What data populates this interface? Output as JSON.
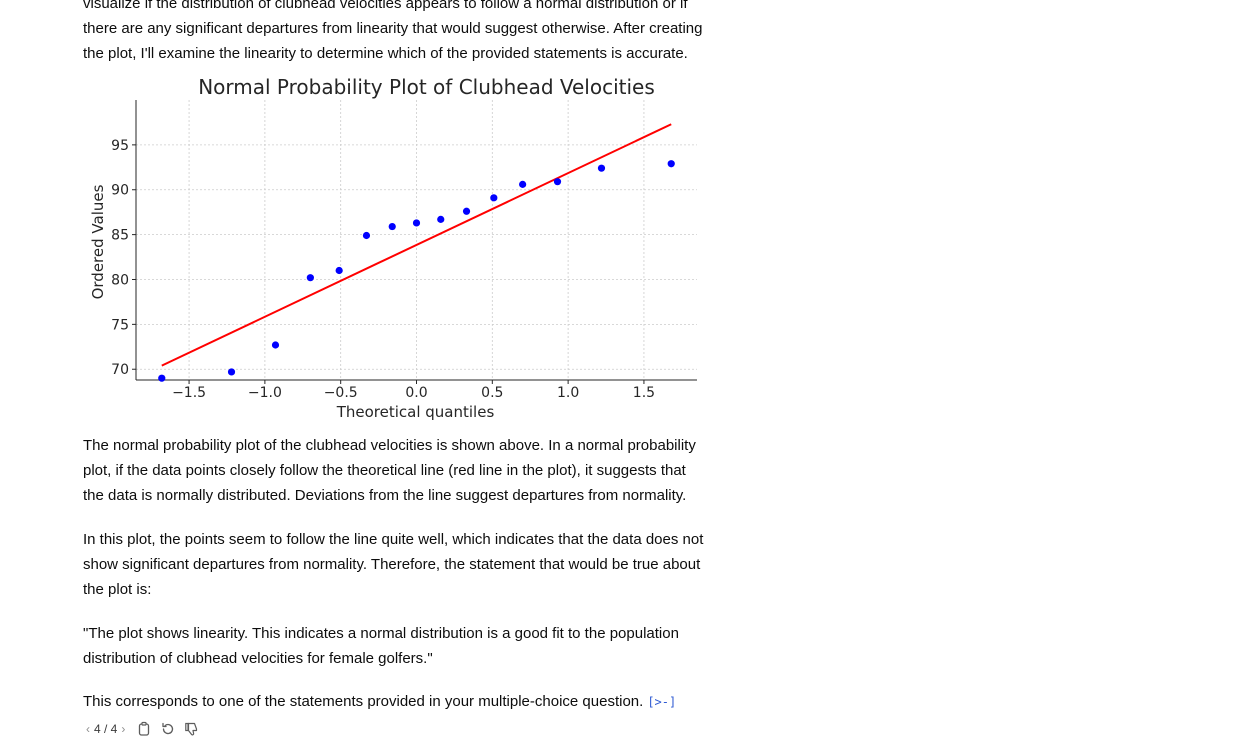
{
  "paragraphs": {
    "intro": "visualize if the distribution of clubhead velocities appears to follow a normal distribution or if there are any significant departures from linearity that would suggest otherwise. After creating the plot, I'll examine the linearity to determine which of the provided statements is accurate.",
    "explain": "The normal probability plot of the clubhead velocities is shown above. In a normal probability plot, if the data points closely follow the theoretical line (red line in the plot), it suggests that the data is normally distributed. Deviations from the line suggest departures from normality.",
    "conclusion": "In this plot, the points seem to follow the line quite well, which indicates that the data does not show significant departures from normality. Therefore, the statement that would be true about the plot is:",
    "quote": "\"The plot shows linearity. This indicates a normal distribution is a good fit to the population distribution of clubhead velocities for female golfers.\"",
    "final": "This corresponds to one of the statements provided in your multiple-choice question."
  },
  "code_link_icon": "[>-]",
  "footer": {
    "prev": "‹",
    "counter": "4 / 4",
    "next": "›",
    "icons": [
      "copy-icon",
      "regenerate-icon",
      "thumbs-down-icon"
    ]
  },
  "chart_data": {
    "type": "scatter",
    "title": "Normal Probability Plot of Clubhead Velocities",
    "xlabel": "Theoretical quantiles",
    "ylabel": "Ordered Values",
    "xlim": [
      -1.85,
      1.85
    ],
    "ylim": [
      68.8,
      100.0
    ],
    "xticks": [
      -1.5,
      -1.0,
      -0.5,
      0.0,
      0.5,
      1.0,
      1.5
    ],
    "xtick_labels": [
      "−1.5",
      "−1.0",
      "−0.5",
      "0.0",
      "0.5",
      "1.0",
      "1.5"
    ],
    "yticks": [
      70,
      75,
      80,
      85,
      90,
      95
    ],
    "ytick_labels": [
      "70",
      "75",
      "80",
      "85",
      "90",
      "95"
    ],
    "grid": true,
    "series": [
      {
        "kind": "points",
        "color": "#0000ff",
        "x": [
          -1.68,
          -1.22,
          -0.93,
          -0.7,
          -0.51,
          -0.33,
          -0.16,
          0.0,
          0.16,
          0.33,
          0.51,
          0.7,
          0.93,
          1.22,
          1.68
        ],
        "y": [
          69.0,
          69.7,
          72.7,
          80.2,
          81.0,
          84.9,
          85.9,
          86.3,
          86.7,
          87.6,
          89.1,
          90.6,
          90.9,
          92.4,
          92.9
        ]
      },
      {
        "kind": "line",
        "color": "#ff0000",
        "x": [
          -1.68,
          1.68
        ],
        "y": [
          70.4,
          97.3
        ]
      }
    ]
  }
}
